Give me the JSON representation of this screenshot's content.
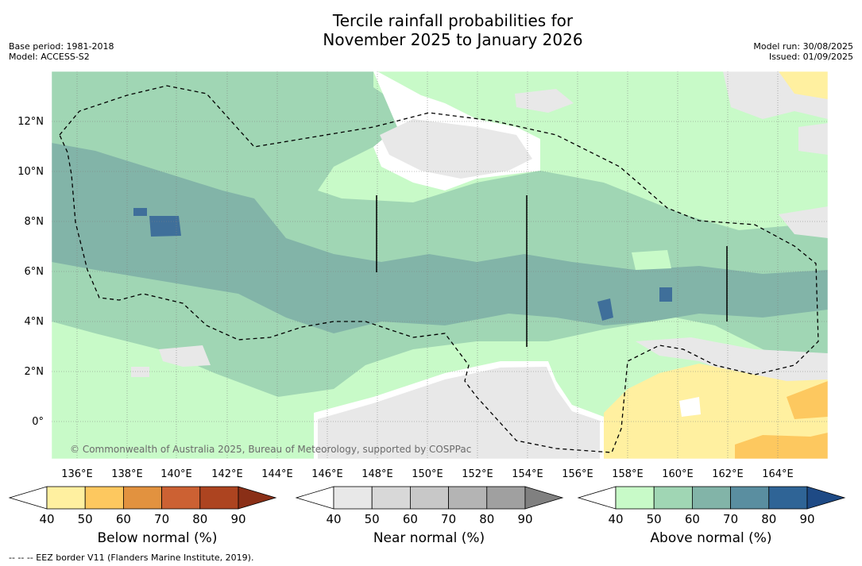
{
  "title": {
    "line1": "Tercile rainfall probabilities for",
    "line2": "November 2025 to January 2026"
  },
  "meta": {
    "base_period": "Base period: 1981-2018",
    "model": "Model: ACCESS-S2",
    "model_run": "Model run: 30/08/2025",
    "issued": "Issued: 01/09/2025"
  },
  "map": {
    "longitude_labels": [
      "136°E",
      "138°E",
      "140°E",
      "142°E",
      "144°E",
      "146°E",
      "148°E",
      "150°E",
      "152°E",
      "154°E",
      "156°E",
      "158°E",
      "160°E",
      "162°E",
      "164°E"
    ],
    "latitude_labels": [
      "12°N",
      "10°N",
      "8°N",
      "6°N",
      "4°N",
      "2°N",
      "0°"
    ],
    "copyright": "© Commonwealth of Australia 2025, Bureau of Meteorology, supported by COSPPac"
  },
  "colorbars": [
    {
      "name": "below",
      "label": "Below normal (%)",
      "ticks": [
        "40",
        "50",
        "60",
        "70",
        "80",
        "90"
      ],
      "colors": [
        "#ffffff",
        "#fff0a0",
        "#fdc85f",
        "#e2923f",
        "#cc6133",
        "#ad4420",
        "#8a2f17"
      ]
    },
    {
      "name": "near",
      "label": "Near normal (%)",
      "ticks": [
        "40",
        "50",
        "60",
        "70",
        "80",
        "90"
      ],
      "colors": [
        "#ffffff",
        "#e8e8e8",
        "#d8d8d8",
        "#c8c8c8",
        "#b4b4b4",
        "#a0a0a0",
        "#808080"
      ]
    },
    {
      "name": "above",
      "label": "Above normal (%)",
      "ticks": [
        "40",
        "50",
        "60",
        "70",
        "80",
        "90"
      ],
      "colors": [
        "#ffffff",
        "#c8fac8",
        "#a0d6b4",
        "#82b4a8",
        "#5a8ea0",
        "#2f6496",
        "#1e4a85"
      ]
    }
  ],
  "footnote": "--  --  -- EEZ border V11 (Flanders Marine Institute, 2019)."
}
